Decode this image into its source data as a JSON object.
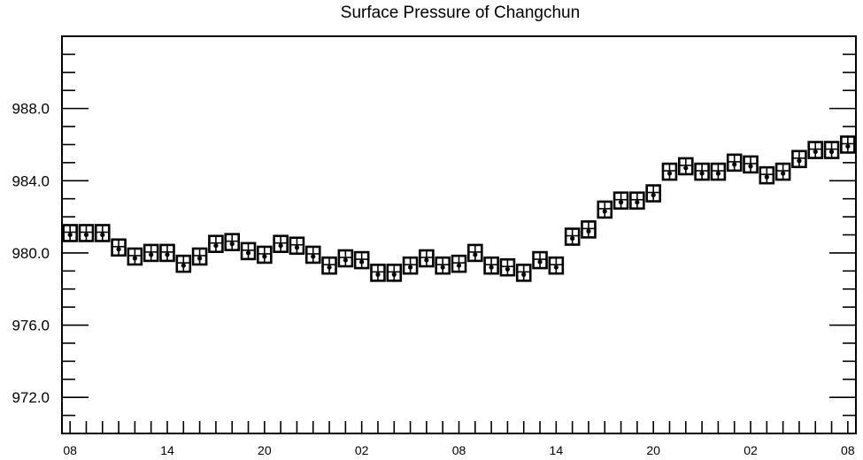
{
  "chart_data": {
    "type": "scatter",
    "title": "Surface Pressure of Changchun",
    "xlabel": "",
    "ylabel": "",
    "ylim": [
      970.0,
      992.0
    ],
    "yticks": [
      {
        "value": 972.0,
        "label": "972.0"
      },
      {
        "value": 976.0,
        "label": "976.0"
      },
      {
        "value": 980.0,
        "label": "980.0"
      },
      {
        "value": 984.0,
        "label": "984.0"
      },
      {
        "value": 988.0,
        "label": "988.0"
      }
    ],
    "xlim": [
      -0.5,
      48.5
    ],
    "xticks": [
      {
        "value": 0,
        "label": "08"
      },
      {
        "value": 6,
        "label": "14"
      },
      {
        "value": 12,
        "label": "20"
      },
      {
        "value": 18,
        "label": "02"
      },
      {
        "value": 24,
        "label": "08"
      },
      {
        "value": 30,
        "label": "14"
      },
      {
        "value": 36,
        "label": "20"
      },
      {
        "value": 42,
        "label": "02"
      },
      {
        "value": 48,
        "label": "08"
      }
    ],
    "marker": "station-model-box",
    "series": [
      {
        "values": [
          981.1,
          981.1,
          981.1,
          980.3,
          979.8,
          980.0,
          980.0,
          979.4,
          979.8,
          980.5,
          980.6,
          980.1,
          979.9,
          980.5,
          980.4,
          979.9,
          979.3,
          979.7,
          979.6,
          978.9,
          978.9,
          979.3,
          979.7,
          979.3,
          979.4,
          980.0,
          979.3,
          979.2,
          978.9,
          979.6,
          979.3,
          980.9,
          981.3,
          982.4,
          982.9,
          982.9,
          983.3,
          984.5,
          984.8,
          984.5,
          984.5,
          985.0,
          984.9,
          984.3,
          984.5,
          985.2,
          985.7,
          985.7,
          986.0
        ]
      }
    ]
  }
}
